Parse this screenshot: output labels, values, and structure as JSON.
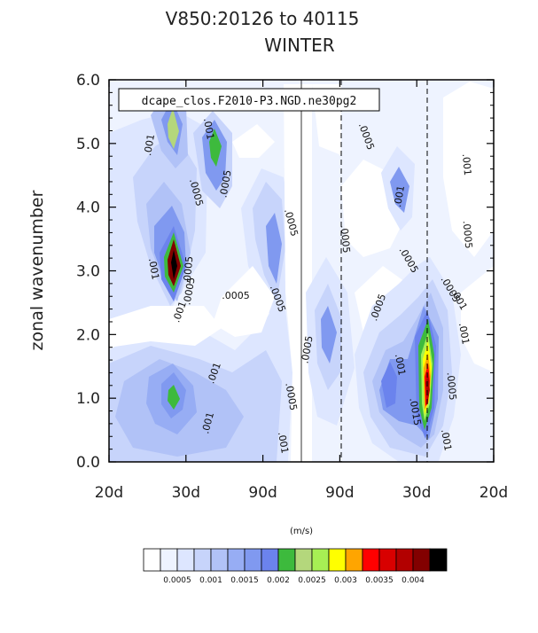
{
  "chart_data": {
    "type": "heatmap",
    "title_line1": "V850:20126 to 40115",
    "title_line2": "WINTER",
    "ylabel": "zonal wavenumber",
    "units": "(m/s)",
    "legend_text": "dcape_clos.F2010-P3.NGD.ne30pg2",
    "x_tick_labels": [
      "20d",
      "30d",
      "90d",
      "90d",
      "30d",
      "20d"
    ],
    "y_tick_labels": [
      "0.0",
      "1.0",
      "2.0",
      "3.0",
      "4.0",
      "5.0",
      "6.0"
    ],
    "ylim": [
      0,
      6
    ],
    "colorbar": {
      "colors": [
        "#ffffff",
        "#eef3ff",
        "#dde6ff",
        "#c7d4fb",
        "#b1c2f7",
        "#97adf4",
        "#8099f0",
        "#6b83ed",
        "#3dba3d",
        "#b4d77c",
        "#a7ef54",
        "#ffff00",
        "#ffa500",
        "#ff0000",
        "#d80000",
        "#b20000",
        "#820000",
        "#000000"
      ],
      "tick_labels": [
        "0.0005",
        "0.001",
        "0.0015",
        "0.002",
        "0.0025",
        "0.003",
        "0.0035",
        "0.004"
      ]
    },
    "contour_labels": [
      ".001",
      ".001",
      ".0005",
      ".0005",
      ".0005",
      ".0005",
      ".0005",
      ".001",
      ".0005",
      ".0005",
      ".0005",
      ".001",
      ".001",
      ".0005",
      ".001",
      ".001",
      ".0005",
      ".001",
      ".0005",
      ".001",
      ".0015",
      ".0005",
      ".001",
      ".0005",
      ".001",
      ".001",
      ".001",
      ".0005",
      ".0005",
      ".0005"
    ]
  }
}
